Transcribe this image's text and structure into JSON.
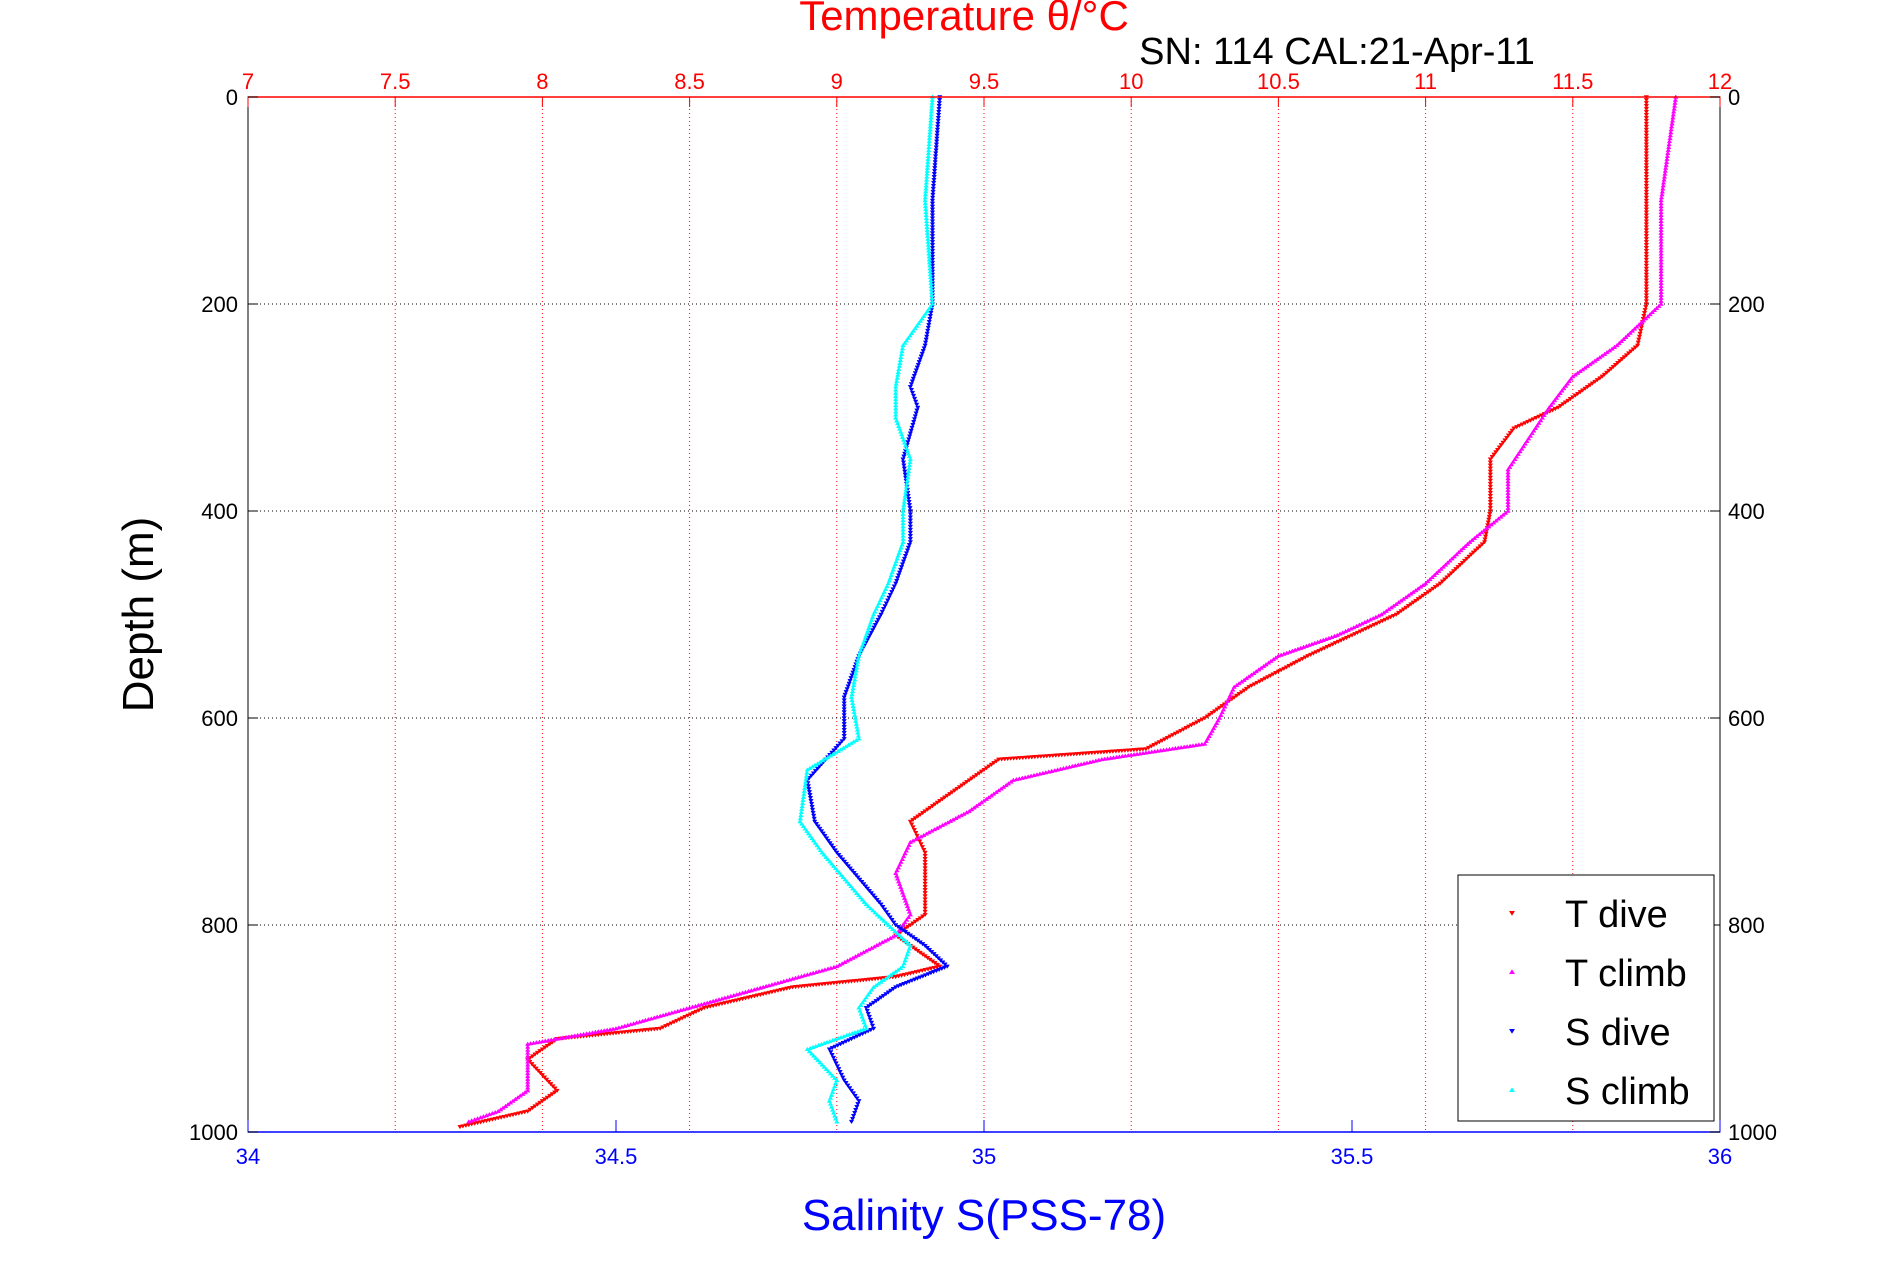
{
  "chart_data": {
    "type": "scatter",
    "title": "Temperature θ/°C",
    "subtitle": "SN: 114  CAL:21-Apr-11",
    "xlabel": "Salinity S(PSS-78)",
    "ylabel": "Depth (m)",
    "x_salinity": {
      "range": [
        34,
        36
      ],
      "ticks": [
        "34",
        "34.5",
        "35",
        "35.5",
        "36"
      ]
    },
    "x_temperature": {
      "range": [
        7,
        12
      ],
      "ticks": [
        "7",
        "7.5",
        "8",
        "8.5",
        "9",
        "9.5",
        "10",
        "10.5",
        "11",
        "11.5",
        "12"
      ]
    },
    "y_depth": {
      "range": [
        0,
        1000
      ],
      "reversed": true,
      "ticks": [
        "0",
        "200",
        "400",
        "600",
        "800",
        "1000"
      ]
    },
    "grid": true,
    "legend_placement": "bottom-right",
    "colors": {
      "temperature_axis": "#ff0000",
      "salinity_axis": "#0000ff",
      "grid": "#000000",
      "t_grid": "#ff0000",
      "s_grid": "#0000ff"
    },
    "series": [
      {
        "name": "T dive",
        "axis": "temperature",
        "color": "#ff0000",
        "marker": "triangle-down",
        "points": [
          [
            11.75,
            0
          ],
          [
            11.75,
            100
          ],
          [
            11.75,
            200
          ],
          [
            11.72,
            240
          ],
          [
            11.6,
            270
          ],
          [
            11.45,
            300
          ],
          [
            11.3,
            320
          ],
          [
            11.22,
            350
          ],
          [
            11.22,
            400
          ],
          [
            11.2,
            430
          ],
          [
            11.05,
            470
          ],
          [
            10.9,
            500
          ],
          [
            10.75,
            520
          ],
          [
            10.6,
            540
          ],
          [
            10.4,
            570
          ],
          [
            10.25,
            600
          ],
          [
            10.05,
            630
          ],
          [
            9.55,
            640
          ],
          [
            9.45,
            660
          ],
          [
            9.35,
            680
          ],
          [
            9.25,
            700
          ],
          [
            9.3,
            730
          ],
          [
            9.3,
            760
          ],
          [
            9.3,
            790
          ],
          [
            9.2,
            810
          ],
          [
            9.35,
            840
          ],
          [
            9.2,
            850
          ],
          [
            8.85,
            860
          ],
          [
            8.55,
            880
          ],
          [
            8.4,
            900
          ],
          [
            8.05,
            910
          ],
          [
            7.95,
            930
          ],
          [
            8.05,
            960
          ],
          [
            7.95,
            980
          ],
          [
            7.72,
            995
          ]
        ]
      },
      {
        "name": "T climb",
        "axis": "temperature",
        "color": "#ff00ff",
        "marker": "triangle-up",
        "points": [
          [
            11.85,
            0
          ],
          [
            11.8,
            100
          ],
          [
            11.8,
            200
          ],
          [
            11.65,
            240
          ],
          [
            11.5,
            270
          ],
          [
            11.42,
            300
          ],
          [
            11.35,
            330
          ],
          [
            11.28,
            360
          ],
          [
            11.28,
            400
          ],
          [
            11.15,
            430
          ],
          [
            11.0,
            470
          ],
          [
            10.85,
            500
          ],
          [
            10.7,
            520
          ],
          [
            10.5,
            540
          ],
          [
            10.35,
            570
          ],
          [
            10.3,
            600
          ],
          [
            10.25,
            625
          ],
          [
            9.9,
            640
          ],
          [
            9.6,
            660
          ],
          [
            9.45,
            690
          ],
          [
            9.25,
            720
          ],
          [
            9.2,
            750
          ],
          [
            9.25,
            790
          ],
          [
            9.2,
            810
          ],
          [
            9.0,
            840
          ],
          [
            8.75,
            860
          ],
          [
            8.5,
            880
          ],
          [
            8.25,
            900
          ],
          [
            7.95,
            915
          ],
          [
            7.95,
            935
          ],
          [
            7.95,
            960
          ],
          [
            7.85,
            980
          ],
          [
            7.75,
            990
          ]
        ]
      },
      {
        "name": "S dive",
        "axis": "salinity",
        "color": "#0000ff",
        "marker": "triangle-down",
        "points": [
          [
            34.94,
            0
          ],
          [
            34.93,
            100
          ],
          [
            34.93,
            200
          ],
          [
            34.92,
            240
          ],
          [
            34.9,
            280
          ],
          [
            34.91,
            300
          ],
          [
            34.89,
            350
          ],
          [
            34.9,
            400
          ],
          [
            34.9,
            430
          ],
          [
            34.88,
            470
          ],
          [
            34.86,
            500
          ],
          [
            34.83,
            540
          ],
          [
            34.81,
            580
          ],
          [
            34.81,
            620
          ],
          [
            34.76,
            660
          ],
          [
            34.77,
            700
          ],
          [
            34.8,
            730
          ],
          [
            34.86,
            780
          ],
          [
            34.88,
            800
          ],
          [
            34.92,
            820
          ],
          [
            34.95,
            840
          ],
          [
            34.88,
            860
          ],
          [
            34.84,
            880
          ],
          [
            34.85,
            900
          ],
          [
            34.79,
            920
          ],
          [
            34.81,
            950
          ],
          [
            34.83,
            970
          ],
          [
            34.82,
            990
          ]
        ]
      },
      {
        "name": "S climb",
        "axis": "salinity",
        "color": "#00ffff",
        "marker": "triangle-up",
        "points": [
          [
            34.93,
            0
          ],
          [
            34.92,
            100
          ],
          [
            34.93,
            200
          ],
          [
            34.89,
            240
          ],
          [
            34.88,
            280
          ],
          [
            34.88,
            310
          ],
          [
            34.9,
            350
          ],
          [
            34.89,
            400
          ],
          [
            34.89,
            430
          ],
          [
            34.87,
            470
          ],
          [
            34.85,
            500
          ],
          [
            34.83,
            540
          ],
          [
            34.82,
            580
          ],
          [
            34.83,
            620
          ],
          [
            34.76,
            650
          ],
          [
            34.75,
            700
          ],
          [
            34.78,
            730
          ],
          [
            34.84,
            780
          ],
          [
            34.87,
            800
          ],
          [
            34.9,
            820
          ],
          [
            34.89,
            840
          ],
          [
            34.85,
            860
          ],
          [
            34.83,
            880
          ],
          [
            34.84,
            900
          ],
          [
            34.76,
            920
          ],
          [
            34.8,
            950
          ],
          [
            34.79,
            970
          ],
          [
            34.8,
            990
          ]
        ]
      }
    ]
  }
}
